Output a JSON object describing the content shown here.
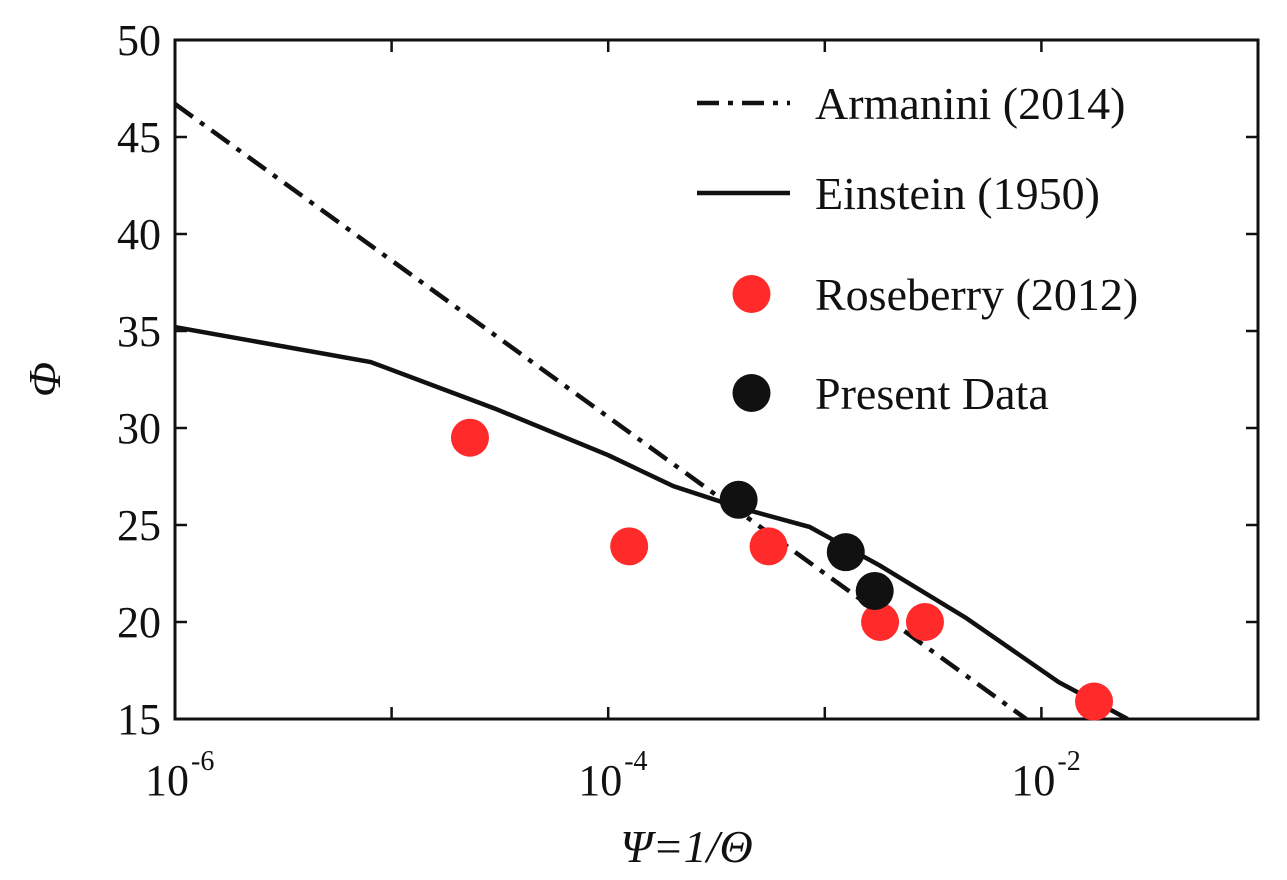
{
  "chart_data": {
    "type": "scatter",
    "title": "",
    "xlabel": "Ψ=1/Θ",
    "ylabel": "Φ",
    "xscale": "log",
    "xlim": [
      1e-06,
      0.1
    ],
    "ylim": [
      15,
      50
    ],
    "x_tick_labels": [
      {
        "value": 1e-06,
        "base": "10",
        "exp": "-6"
      },
      {
        "value": 0.0001,
        "base": "10",
        "exp": "-4"
      },
      {
        "value": 0.01,
        "base": "10",
        "exp": "-2"
      }
    ],
    "y_ticks": [
      15,
      20,
      25,
      30,
      35,
      40,
      45,
      50
    ],
    "legend_position": "top-right",
    "series": [
      {
        "name": "Armanini (2014)",
        "kind": "line",
        "style": "dashdot",
        "color": "#111111",
        "x": [
          1e-06,
          0.0085
        ],
        "y": [
          46.7,
          15.0
        ]
      },
      {
        "name": "Einstein (1950)",
        "kind": "line",
        "style": "solid",
        "color": "#111111",
        "x": [
          1e-06,
          8e-06,
          3e-05,
          0.0001,
          0.0002,
          0.0004,
          0.00085,
          0.0018,
          0.0045,
          0.012,
          0.025
        ],
        "y": [
          35.2,
          33.4,
          31.0,
          28.6,
          27.0,
          25.9,
          24.9,
          22.9,
          20.2,
          16.9,
          15.0
        ]
      },
      {
        "name": "Roseberry (2012)",
        "kind": "points",
        "color": "#ff2a2a",
        "x": [
          2.3e-05,
          0.000125,
          0.00055,
          0.0018,
          0.0029,
          0.0175
        ],
        "y": [
          29.5,
          23.9,
          23.9,
          20.0,
          20.0,
          15.9
        ]
      },
      {
        "name": "Present Data",
        "kind": "points",
        "color": "#111111",
        "x": [
          0.0004,
          0.00125,
          0.0017
        ],
        "y": [
          26.3,
          23.6,
          21.6
        ]
      }
    ]
  }
}
